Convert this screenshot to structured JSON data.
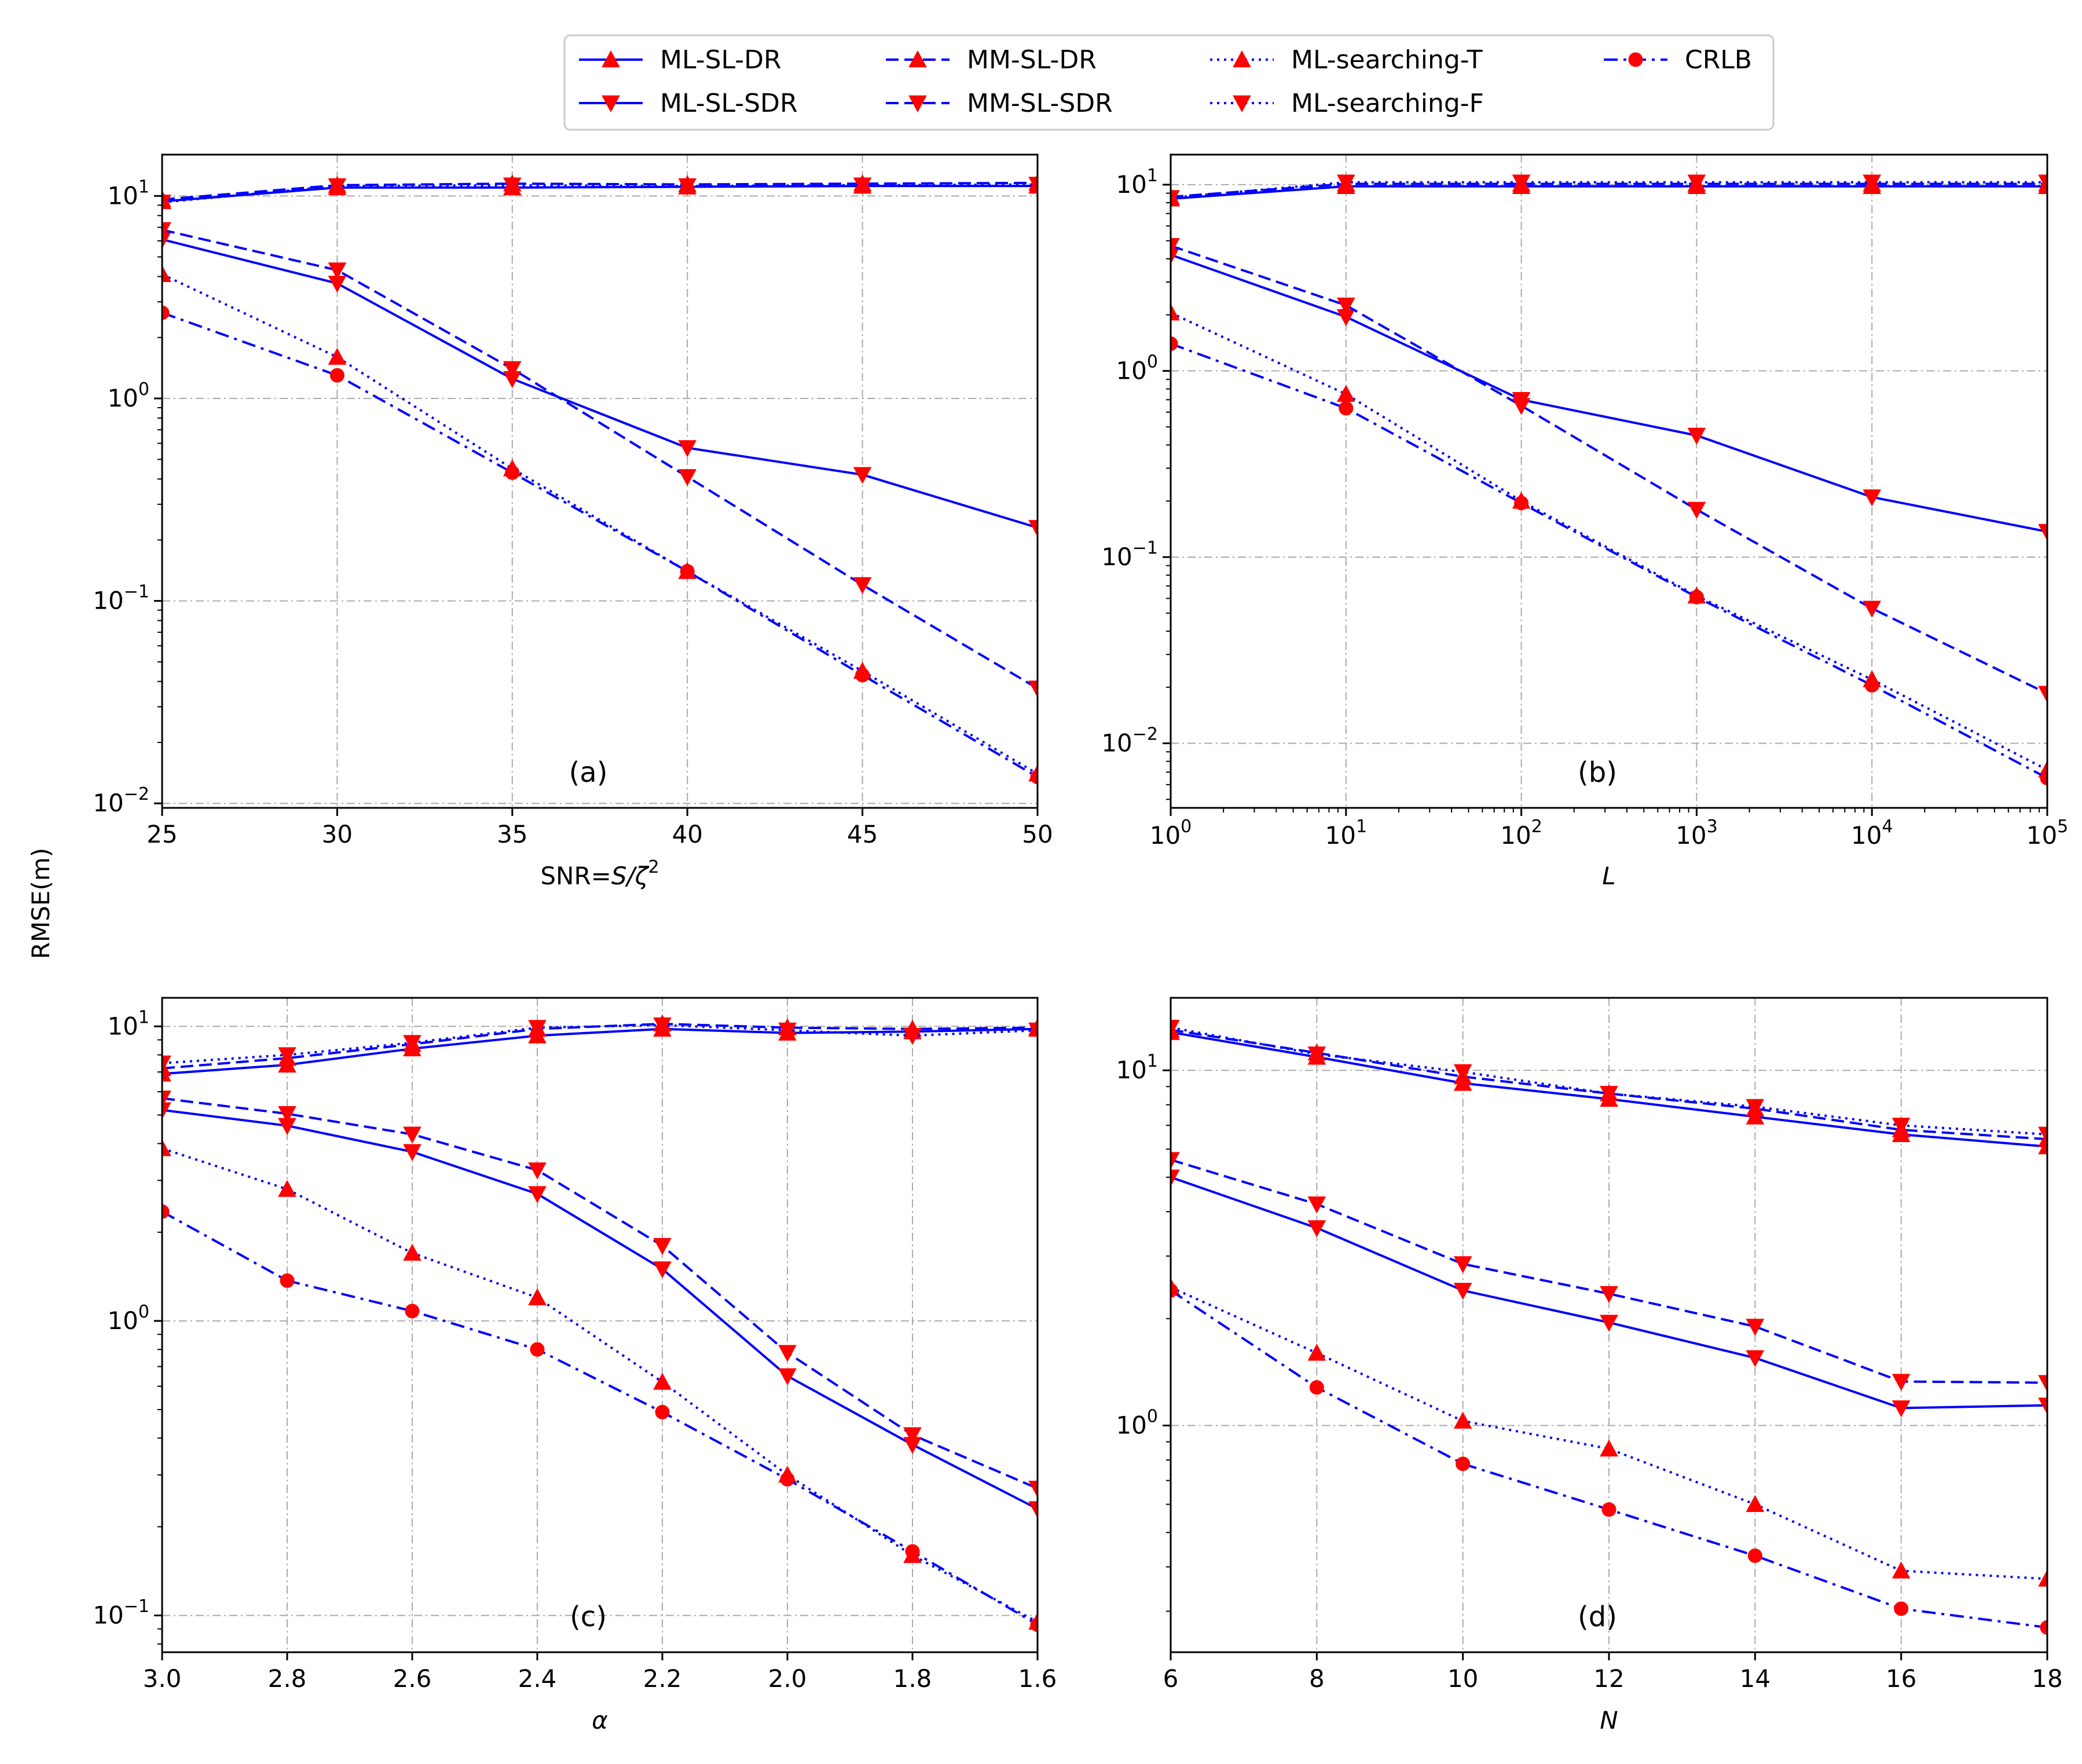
{
  "figure": {
    "ylabel": "RMSE(m)"
  },
  "colors": {
    "line": "#0000ff",
    "marker": "#ff0000",
    "grid": "#aaaaaa"
  },
  "legend": [
    {
      "label": "ML-SL-DR",
      "style": "solid",
      "marker": "triangle-up"
    },
    {
      "label": "ML-SL-SDR",
      "style": "solid",
      "marker": "triangle-down"
    },
    {
      "label": "MM-SL-DR",
      "style": "dashed",
      "marker": "triangle-up"
    },
    {
      "label": "MM-SL-SDR",
      "style": "dashed",
      "marker": "triangle-down"
    },
    {
      "label": "ML-searching-T",
      "style": "dotted",
      "marker": "triangle-up"
    },
    {
      "label": "ML-searching-F",
      "style": "dotted",
      "marker": "triangle-down"
    },
    {
      "label": "CRLB",
      "style": "dashdot",
      "marker": "circle"
    }
  ],
  "chart_data": [
    {
      "id": "a",
      "panel_label": "(a)",
      "type": "line",
      "xlabel": "SNR=S/ζ²",
      "xscale": "linear",
      "xlim": [
        25,
        50
      ],
      "xticks": [
        25,
        30,
        35,
        40,
        45,
        50
      ],
      "xticklabels": [
        "25",
        "30",
        "35",
        "40",
        "45",
        "50"
      ],
      "yscale": "log",
      "ylim": [
        0.0095,
        16
      ],
      "yticks": [
        0.01,
        0.1,
        1,
        10
      ],
      "yticklabels": [
        [
          "10",
          "−2"
        ],
        [
          "10",
          "−1"
        ],
        [
          "10",
          "0"
        ],
        [
          "10",
          "1"
        ]
      ],
      "x": [
        25,
        30,
        35,
        40,
        45,
        50
      ],
      "series": [
        {
          "name": "ML-SL-DR",
          "values": [
            9.4,
            11.0,
            11.0,
            11.1,
            11.2,
            11.2
          ]
        },
        {
          "name": "ML-SL-SDR",
          "values": [
            6.1,
            3.7,
            1.25,
            0.57,
            0.42,
            0.23
          ]
        },
        {
          "name": "MM-SL-DR",
          "values": [
            9.6,
            11.3,
            11.5,
            11.4,
            11.5,
            11.6
          ]
        },
        {
          "name": "MM-SL-SDR",
          "values": [
            6.8,
            4.3,
            1.4,
            0.41,
            0.12,
            0.037
          ]
        },
        {
          "name": "ML-searching-T",
          "values": [
            4.1,
            1.6,
            0.45,
            0.14,
            0.045,
            0.014
          ]
        },
        {
          "name": "ML-searching-F",
          "values": [
            9.3,
            11.2,
            11.3,
            11.2,
            11.3,
            11.4
          ]
        },
        {
          "name": "CRLB",
          "values": [
            2.65,
            1.3,
            0.43,
            0.14,
            0.043,
            0.0135
          ]
        }
      ]
    },
    {
      "id": "b",
      "panel_label": "(b)",
      "type": "line",
      "xlabel": "L",
      "xscale": "log",
      "xlim": [
        1,
        100000
      ],
      "xticks": [
        1,
        10,
        100,
        1000,
        10000,
        100000
      ],
      "xticklabels": [
        [
          "10",
          "0"
        ],
        [
          "10",
          "1"
        ],
        [
          "10",
          "2"
        ],
        [
          "10",
          "3"
        ],
        [
          "10",
          "4"
        ],
        [
          "10",
          "5"
        ]
      ],
      "yscale": "log",
      "ylim": [
        0.0045,
        14.5
      ],
      "yticks": [
        0.01,
        0.1,
        1,
        10
      ],
      "yticklabels": [
        [
          "10",
          "−2"
        ],
        [
          "10",
          "−1"
        ],
        [
          "10",
          "0"
        ],
        [
          "10",
          "1"
        ]
      ],
      "x": [
        1,
        10,
        100,
        1000,
        10000,
        100000
      ],
      "series": [
        {
          "name": "ML-SL-DR",
          "values": [
            8.4,
            9.8,
            9.8,
            9.8,
            9.8,
            9.8
          ]
        },
        {
          "name": "ML-SL-SDR",
          "values": [
            4.2,
            1.95,
            0.7,
            0.45,
            0.21,
            0.137
          ]
        },
        {
          "name": "MM-SL-DR",
          "values": [
            8.6,
            10.1,
            10.1,
            10.1,
            10.1,
            10.1
          ]
        },
        {
          "name": "MM-SL-SDR",
          "values": [
            4.7,
            2.25,
            0.65,
            0.18,
            0.053,
            0.0185
          ]
        },
        {
          "name": "ML-searching-T",
          "values": [
            2.05,
            0.75,
            0.2,
            0.062,
            0.022,
            0.0072
          ]
        },
        {
          "name": "ML-searching-F",
          "values": [
            8.5,
            10.3,
            10.3,
            10.3,
            10.3,
            10.3
          ]
        },
        {
          "name": "CRLB",
          "values": [
            1.4,
            0.63,
            0.195,
            0.061,
            0.0205,
            0.0065
          ]
        }
      ]
    },
    {
      "id": "c",
      "panel_label": "(c)",
      "type": "line",
      "xlabel": "α",
      "xscale": "linear",
      "xlim": [
        3.0,
        1.6
      ],
      "xticks": [
        3.0,
        2.8,
        2.6,
        2.4,
        2.2,
        2.0,
        1.8,
        1.6
      ],
      "xticklabels": [
        "3.0",
        "2.8",
        "2.6",
        "2.4",
        "2.2",
        "2.0",
        "1.8",
        "1.6"
      ],
      "yscale": "log",
      "ylim": [
        0.075,
        12.5
      ],
      "yticks": [
        0.1,
        1,
        10
      ],
      "yticklabels": [
        [
          "10",
          "−1"
        ],
        [
          "10",
          "0"
        ],
        [
          "10",
          "1"
        ]
      ],
      "x": [
        3.0,
        2.8,
        2.6,
        2.4,
        2.2,
        2.0,
        1.8,
        1.6
      ],
      "series": [
        {
          "name": "ML-SL-DR",
          "values": [
            6.9,
            7.4,
            8.4,
            9.3,
            9.8,
            9.5,
            9.6,
            9.8
          ]
        },
        {
          "name": "ML-SL-SDR",
          "values": [
            5.2,
            4.6,
            3.75,
            2.7,
            1.5,
            0.65,
            0.38,
            0.23
          ]
        },
        {
          "name": "MM-SL-DR",
          "values": [
            7.2,
            7.8,
            8.7,
            9.8,
            10.2,
            9.9,
            9.8,
            9.9
          ]
        },
        {
          "name": "MM-SL-SDR",
          "values": [
            5.7,
            5.05,
            4.3,
            3.25,
            1.8,
            0.78,
            0.41,
            0.27
          ]
        },
        {
          "name": "ML-searching-T",
          "values": [
            3.85,
            2.8,
            1.7,
            1.2,
            0.62,
            0.3,
            0.16,
            0.095
          ]
        },
        {
          "name": "ML-searching-F",
          "values": [
            7.5,
            8.0,
            8.8,
            9.9,
            10.1,
            9.7,
            9.3,
            9.7
          ]
        },
        {
          "name": "CRLB",
          "values": [
            2.35,
            1.37,
            1.08,
            0.8,
            0.49,
            0.29,
            0.165,
            0.093
          ]
        }
      ]
    },
    {
      "id": "d",
      "panel_label": "(d)",
      "type": "line",
      "xlabel": "N",
      "xscale": "linear",
      "xlim": [
        6,
        18
      ],
      "xticks": [
        6,
        8,
        10,
        12,
        14,
        16,
        18
      ],
      "xticklabels": [
        "6",
        "8",
        "10",
        "12",
        "14",
        "16",
        "18"
      ],
      "yscale": "log",
      "ylim": [
        0.23,
        16
      ],
      "yticks": [
        1,
        10
      ],
      "yticklabels": [
        [
          "10",
          "0"
        ],
        [
          "10",
          "1"
        ]
      ],
      "x": [
        6,
        8,
        10,
        12,
        14,
        16,
        18
      ],
      "series": [
        {
          "name": "ML-SL-DR",
          "values": [
            12.8,
            10.9,
            9.2,
            8.3,
            7.4,
            6.6,
            6.1
          ]
        },
        {
          "name": "ML-SL-SDR",
          "values": [
            5.0,
            3.6,
            2.4,
            1.95,
            1.55,
            1.12,
            1.14
          ]
        },
        {
          "name": "MM-SL-DR",
          "values": [
            13.0,
            11.2,
            9.6,
            8.6,
            7.8,
            6.8,
            6.4
          ]
        },
        {
          "name": "MM-SL-SDR",
          "values": [
            5.6,
            4.2,
            2.85,
            2.35,
            1.9,
            1.33,
            1.32
          ]
        },
        {
          "name": "ML-searching-T",
          "values": [
            2.45,
            1.6,
            1.03,
            0.86,
            0.6,
            0.39,
            0.37
          ]
        },
        {
          "name": "ML-searching-F",
          "values": [
            13.2,
            11.1,
            9.9,
            8.6,
            7.9,
            7.0,
            6.6
          ]
        },
        {
          "name": "CRLB",
          "values": [
            2.4,
            1.28,
            0.78,
            0.58,
            0.43,
            0.305,
            0.27
          ]
        }
      ]
    }
  ]
}
